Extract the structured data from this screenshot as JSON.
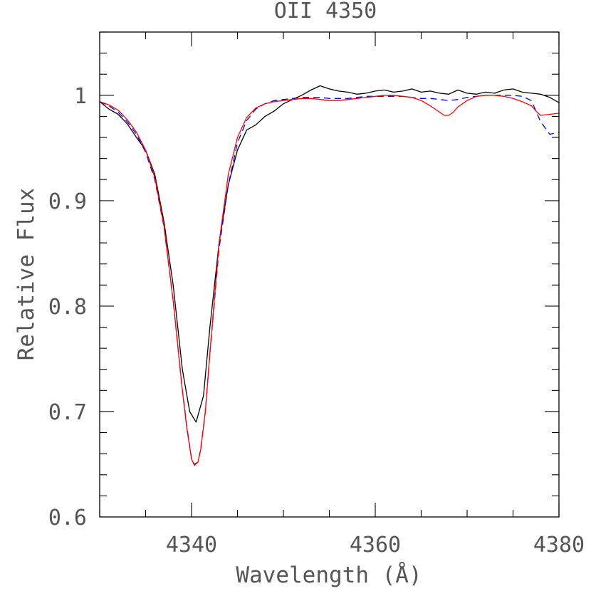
{
  "chart_data": {
    "type": "line",
    "title": "OII 4350",
    "xlabel": "Wavelength (Å)",
    "ylabel": "Relative Flux",
    "xlim": [
      4330,
      4380
    ],
    "ylim": [
      0.6,
      1.06
    ],
    "x_major_ticks": [
      4340,
      4360,
      4380
    ],
    "x_minor_step": 5,
    "y_major_ticks": [
      0.6,
      0.7,
      0.8,
      0.9,
      1.0
    ],
    "y_minor_step": 0.02,
    "x_tick_labels": [
      "4340",
      "4360",
      "4380"
    ],
    "y_tick_labels": [
      "0.6",
      "0.7",
      "0.8",
      "0.9",
      "1"
    ],
    "series": [
      {
        "color": "#000000",
        "dash": "none",
        "x": [
          4330,
          4331,
          4332,
          4333,
          4334,
          4335,
          4336,
          4337,
          4338,
          4339,
          4339.8,
          4340.5,
          4341.3,
          4342,
          4343,
          4344,
          4345,
          4346,
          4347,
          4348,
          4349,
          4350,
          4351,
          4352,
          4353,
          4354,
          4355,
          4356,
          4357,
          4358,
          4359,
          4360,
          4361,
          4362,
          4363,
          4364,
          4365,
          4366,
          4367,
          4368,
          4369,
          4370,
          4371,
          4372,
          4373,
          4374,
          4375,
          4376,
          4377,
          4378,
          4379,
          4380
        ],
        "y": [
          0.994,
          0.987,
          0.982,
          0.973,
          0.96,
          0.948,
          0.925,
          0.88,
          0.82,
          0.74,
          0.7,
          0.69,
          0.715,
          0.78,
          0.86,
          0.915,
          0.948,
          0.967,
          0.972,
          0.98,
          0.985,
          0.992,
          0.996,
          1.0,
          1.005,
          1.009,
          1.006,
          1.004,
          1.003,
          1.001,
          1.002,
          1.004,
          1.005,
          1.003,
          1.004,
          1.006,
          1.003,
          1.004,
          1.002,
          1.001,
          1.005,
          1.002,
          1.001,
          1.003,
          1.002,
          1.005,
          1.006,
          1.003,
          1.002,
          1.001,
          0.998,
          0.993
        ]
      },
      {
        "color": "#0000ff",
        "dash": "dashed",
        "x": [
          4330,
          4331,
          4332,
          4333,
          4334,
          4335,
          4336,
          4337,
          4338,
          4339,
          4339.5,
          4340,
          4340.3,
          4340.7,
          4341,
          4341.5,
          4342,
          4343,
          4344,
          4345,
          4346,
          4347,
          4348,
          4349,
          4350,
          4351,
          4352,
          4353,
          4354,
          4355,
          4356,
          4357,
          4358,
          4359,
          4360,
          4361,
          4362,
          4363,
          4364,
          4365,
          4366,
          4367,
          4368,
          4369,
          4370,
          4371,
          4372,
          4373,
          4374,
          4375,
          4376,
          4377,
          4378,
          4379,
          4380
        ],
        "y": [
          0.994,
          0.99,
          0.984,
          0.975,
          0.963,
          0.946,
          0.92,
          0.875,
          0.805,
          0.72,
          0.685,
          0.655,
          0.65,
          0.652,
          0.665,
          0.7,
          0.755,
          0.855,
          0.915,
          0.955,
          0.976,
          0.987,
          0.992,
          0.995,
          0.996,
          0.997,
          0.998,
          0.998,
          0.998,
          0.997,
          0.997,
          0.997,
          0.998,
          0.999,
          0.999,
          0.999,
          0.999,
          0.999,
          0.998,
          0.997,
          0.997,
          0.996,
          0.995,
          0.996,
          0.998,
          0.999,
          1.0,
          1.0,
          1.0,
          1.0,
          0.999,
          0.995,
          0.975,
          0.963,
          0.965
        ]
      },
      {
        "color": "#ff0000",
        "dash": "none",
        "x": [
          4330,
          4331,
          4332,
          4333,
          4334,
          4335,
          4336,
          4337,
          4338,
          4339,
          4339.5,
          4340,
          4340.3,
          4340.7,
          4341,
          4341.5,
          4342,
          4343,
          4344,
          4345,
          4346,
          4347,
          4348,
          4349,
          4350,
          4351,
          4352,
          4353,
          4354,
          4355,
          4356,
          4357,
          4358,
          4359,
          4360,
          4361,
          4362,
          4363,
          4364,
          4365,
          4366,
          4367,
          4367.5,
          4368,
          4368.5,
          4369,
          4370,
          4371,
          4372,
          4373,
          4374,
          4375,
          4376,
          4377,
          4377.5,
          4378,
          4379,
          4380
        ],
        "y": [
          0.994,
          0.991,
          0.986,
          0.977,
          0.965,
          0.948,
          0.922,
          0.876,
          0.805,
          0.72,
          0.683,
          0.655,
          0.649,
          0.652,
          0.664,
          0.7,
          0.756,
          0.86,
          0.925,
          0.96,
          0.979,
          0.988,
          0.992,
          0.994,
          0.995,
          0.996,
          0.997,
          0.997,
          0.996,
          0.995,
          0.995,
          0.996,
          0.997,
          0.998,
          0.999,
          1.0,
          1.0,
          0.999,
          0.998,
          0.995,
          0.99,
          0.984,
          0.981,
          0.981,
          0.984,
          0.989,
          0.995,
          0.999,
          1.0,
          1.0,
          0.999,
          0.997,
          0.994,
          0.99,
          0.985,
          0.981,
          0.982,
          0.983
        ]
      }
    ]
  }
}
